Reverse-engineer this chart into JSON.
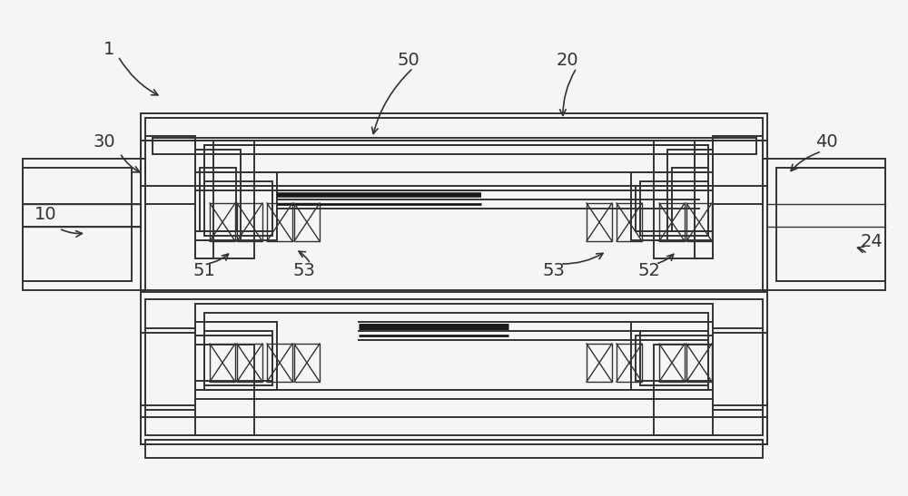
{
  "bg_color": "#f5f5f5",
  "line_color": "#333333",
  "lw_main": 1.4,
  "lw_thin": 1.0,
  "lw_thick": 2.5,
  "fig_w": 10.0,
  "fig_h": 5.47
}
